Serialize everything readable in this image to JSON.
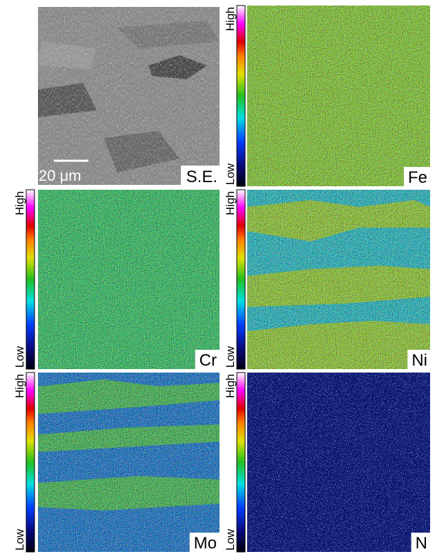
{
  "panels": [
    {
      "label": "S.E.",
      "scale_bar": "20 μm"
    },
    {
      "label": "Fe",
      "high": "High",
      "low": "Low"
    },
    {
      "label": "Cr",
      "high": "High",
      "low": "Low"
    },
    {
      "label": "Ni",
      "high": "High",
      "low": "Low"
    },
    {
      "label": "Mo",
      "high": "High",
      "low": "Low"
    },
    {
      "label": "N",
      "high": "High",
      "low": "Low"
    }
  ]
}
